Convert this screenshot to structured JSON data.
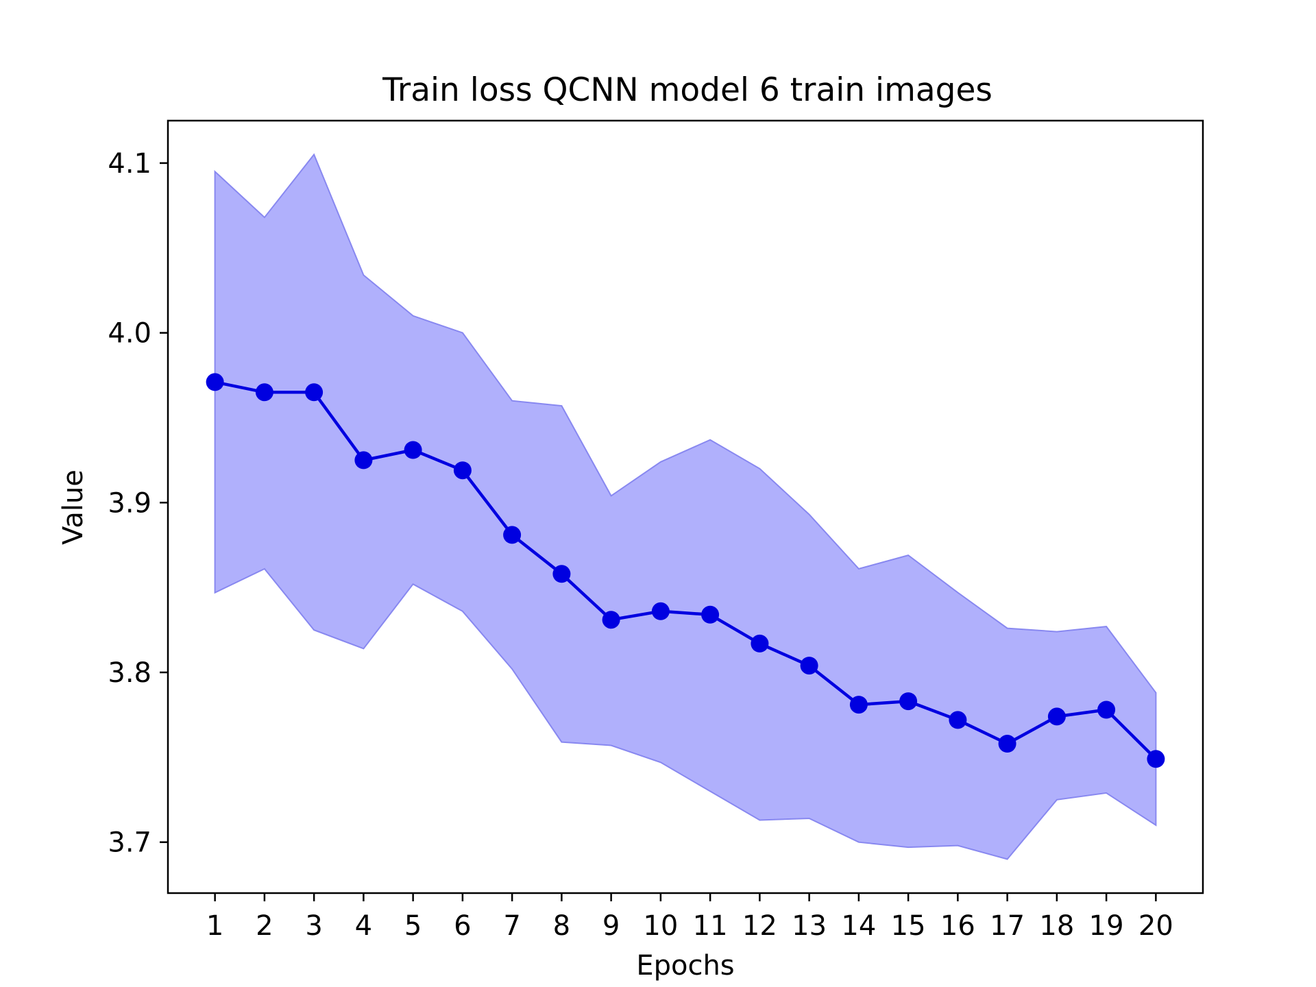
{
  "chart_data": {
    "type": "line",
    "title": "Train loss QCNN model 6 train images",
    "xlabel": "Epochs",
    "ylabel": "Value",
    "x": [
      1,
      2,
      3,
      4,
      5,
      6,
      7,
      8,
      9,
      10,
      11,
      12,
      13,
      14,
      15,
      16,
      17,
      18,
      19,
      20
    ],
    "xticks": [
      "1",
      "2",
      "3",
      "4",
      "5",
      "6",
      "7",
      "8",
      "9",
      "10",
      "11",
      "12",
      "13",
      "14",
      "15",
      "16",
      "17",
      "18",
      "19",
      "20"
    ],
    "yticks": [
      3.7,
      3.8,
      3.9,
      4.0,
      4.1
    ],
    "ytick_labels": [
      "3.7",
      "3.8",
      "3.9",
      "4.0",
      "4.1"
    ],
    "xlim": [
      0.05,
      20.95
    ],
    "ylim": [
      3.67,
      4.125
    ],
    "grid": false,
    "series": [
      {
        "values": [
          3.971,
          3.965,
          3.965,
          3.925,
          3.931,
          3.919,
          3.881,
          3.858,
          3.831,
          3.836,
          3.834,
          3.817,
          3.804,
          3.781,
          3.783,
          3.772,
          3.758,
          3.774,
          3.778,
          3.749
        ],
        "upper": [
          4.095,
          4.068,
          4.105,
          4.034,
          4.01,
          4.0,
          3.96,
          3.957,
          3.904,
          3.924,
          3.937,
          3.92,
          3.893,
          3.861,
          3.869,
          3.847,
          3.826,
          3.824,
          3.827,
          3.788
        ],
        "lower": [
          3.847,
          3.861,
          3.825,
          3.814,
          3.852,
          3.836,
          3.802,
          3.759,
          3.757,
          3.747,
          3.73,
          3.713,
          3.714,
          3.7,
          3.697,
          3.698,
          3.69,
          3.725,
          3.729,
          3.71
        ],
        "line_color": "#0000e0",
        "band_color": "#b0b0fc",
        "band_edge_color": "#8888f0"
      }
    ]
  }
}
